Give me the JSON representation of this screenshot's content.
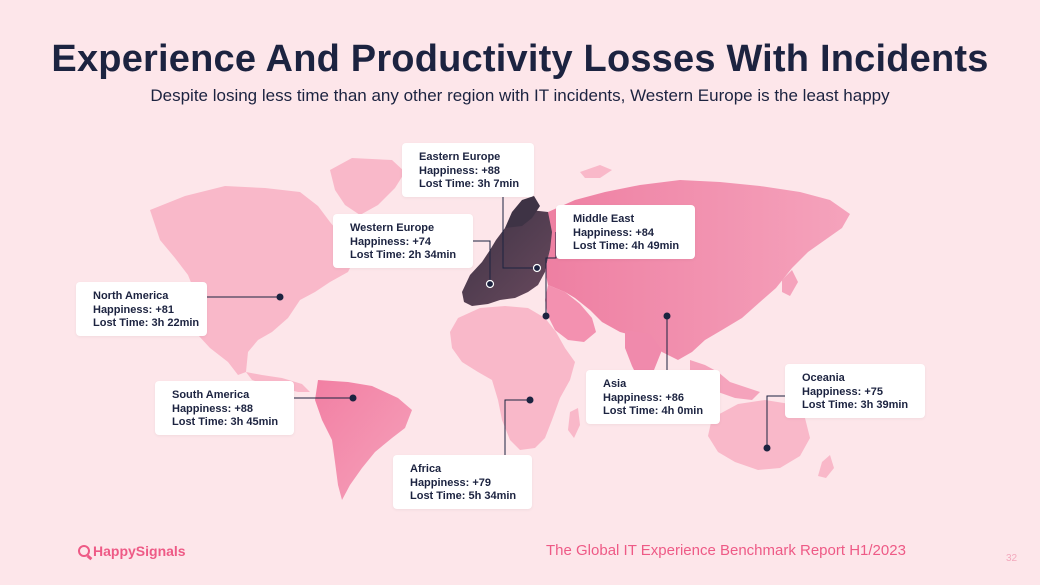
{
  "title": "Experience And Productivity Losses With Incidents",
  "subtitle": "Despite losing less time than any other region with IT incidents, Western Europe is the least happy",
  "regions": {
    "eastern_europe": {
      "name": "Eastern Europe",
      "happiness": "Happiness: +88",
      "lost_time": "Lost Time: 3h 7min"
    },
    "western_europe": {
      "name": "Western Europe",
      "happiness": "Happiness: +74",
      "lost_time": "Lost Time: 2h 34min"
    },
    "middle_east": {
      "name": "Middle East",
      "happiness": "Happiness: +84",
      "lost_time": "Lost Time: 4h 49min"
    },
    "north_america": {
      "name": "North America",
      "happiness": "Happiness: +81",
      "lost_time": "Lost Time: 3h 22min"
    },
    "south_america": {
      "name": "South America",
      "happiness": "Happiness: +88",
      "lost_time": "Lost Time: 3h 45min"
    },
    "asia": {
      "name": "Asia",
      "happiness": "Happiness: +86",
      "lost_time": "Lost Time: 4h 0min"
    },
    "oceania": {
      "name": "Oceania",
      "happiness": "Happiness: +75",
      "lost_time": "Lost Time: 3h 39min"
    },
    "africa": {
      "name": "Africa",
      "happiness": "Happiness: +79",
      "lost_time": "Lost Time: 5h 34min"
    }
  },
  "footer": {
    "logo": "HappySignals",
    "report": "The Global IT Experience Benchmark Report H1/2023",
    "page_number": "32"
  },
  "colors": {
    "background": "#fde6ea",
    "title": "#1c2340",
    "accent": "#ee5a86",
    "map_light": "#f9b8c9",
    "map_mid": "#f39ab4",
    "map_dark": "#4a3a4c"
  }
}
